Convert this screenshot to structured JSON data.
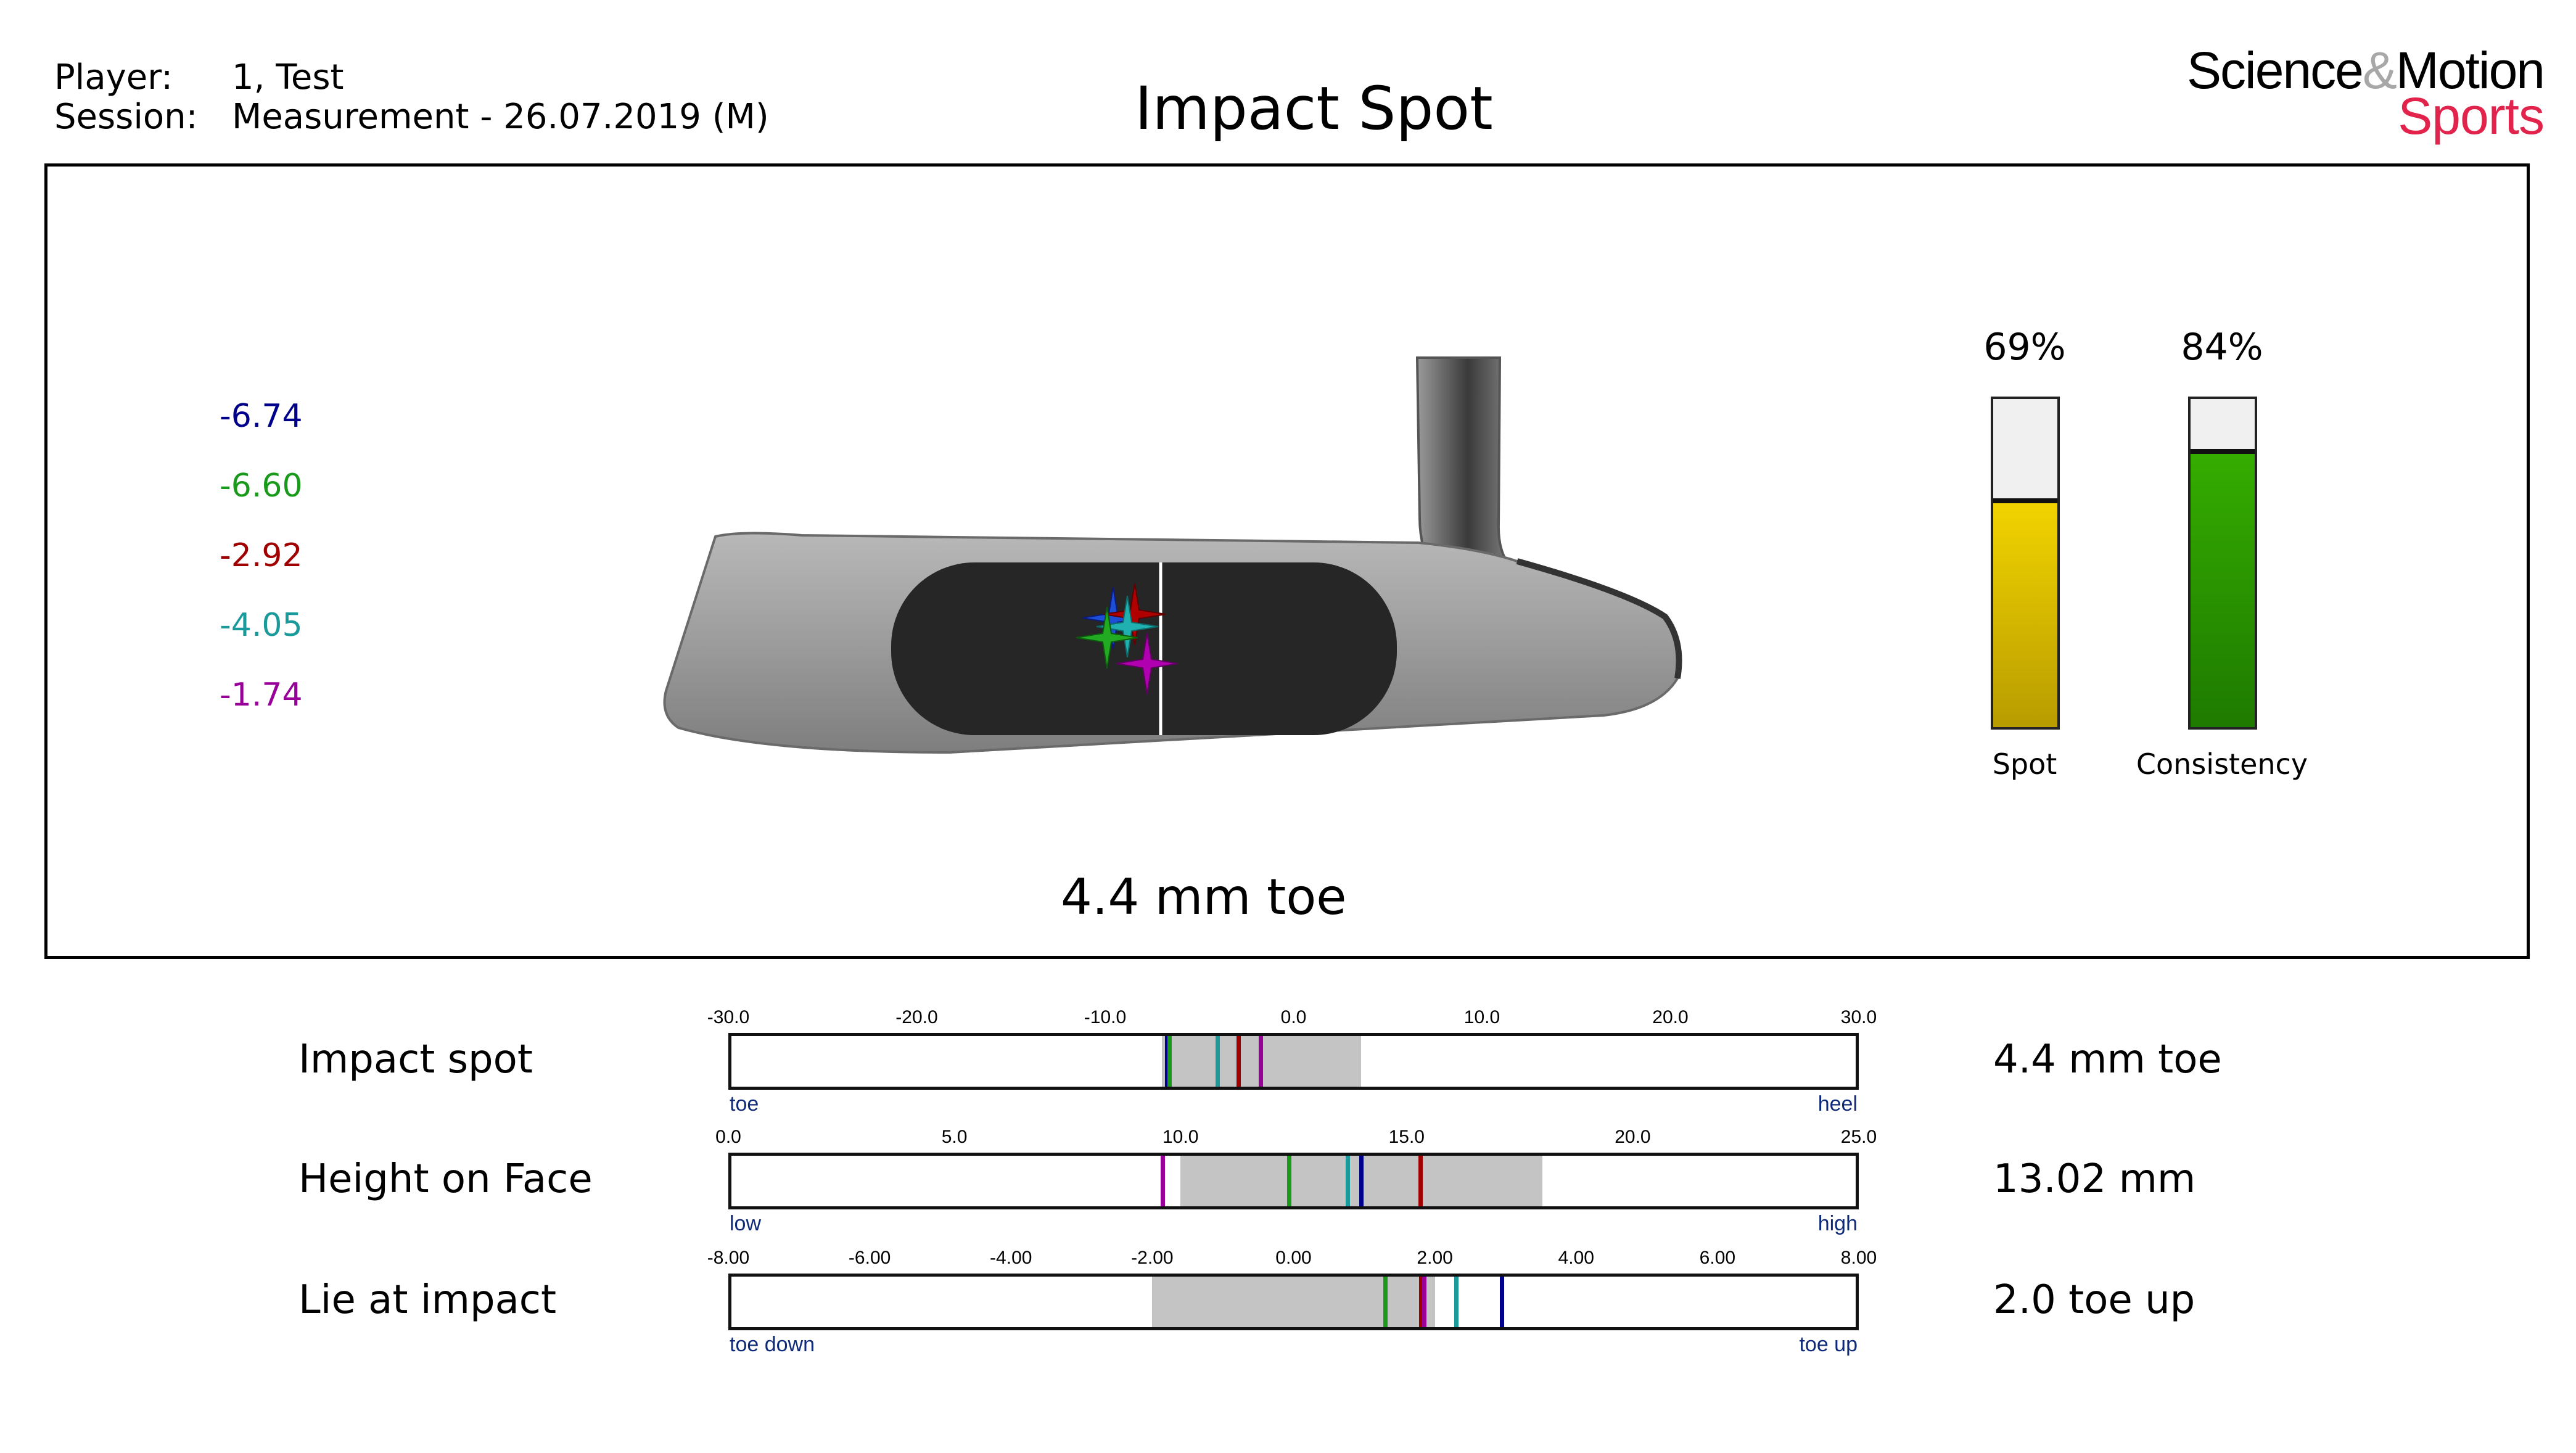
{
  "header": {
    "player_label": "Player:",
    "player_value": "1, Test",
    "session_label": "Session:",
    "session_value": "Measurement - 26.07.2019 (M)",
    "title": "Impact Spot"
  },
  "logo": {
    "science": "Science",
    "amp": "&",
    "motion": "Motion",
    "sports": "Sports"
  },
  "legend_values": [
    {
      "text": "-6.74",
      "color": "#00008b"
    },
    {
      "text": "-6.60",
      "color": "#1a9a1a"
    },
    {
      "text": "-2.92",
      "color": "#a00000"
    },
    {
      "text": "-4.05",
      "color": "#1a9a9a"
    },
    {
      "text": "-1.74",
      "color": "#990099"
    }
  ],
  "result_text": "4.4 mm toe",
  "meters": [
    {
      "pct_text": "69%",
      "label": "Spot",
      "level": 0.69,
      "color_top": "#f2d400",
      "color_bottom": "#b89c00"
    },
    {
      "pct_text": "84%",
      "label": "Consistency",
      "level": 0.84,
      "color_top": "#35ad00",
      "color_bottom": "#1e7a00"
    }
  ],
  "putter_markers_icon": "star-marker-icon",
  "chart_data": [
    {
      "type": "range-gauge",
      "label": "Impact spot",
      "value_text": "4.4 mm toe",
      "min": -30,
      "max": 30,
      "ticks": [
        "-30.0",
        "-20.0",
        "-10.0",
        "0.0",
        "10.0",
        "20.0",
        "30.0"
      ],
      "left_end_label": "toe",
      "right_end_label": "heel",
      "range": [
        -7.0,
        3.6
      ],
      "markers": [
        {
          "value": -6.74,
          "color": "#00008b"
        },
        {
          "value": -6.6,
          "color": "#1a9a1a"
        },
        {
          "value": -4.05,
          "color": "#1a9a9a"
        },
        {
          "value": -2.92,
          "color": "#a00000"
        },
        {
          "value": -1.74,
          "color": "#990099"
        }
      ]
    },
    {
      "type": "range-gauge",
      "label": "Height on Face",
      "value_text": "13.02 mm",
      "min": 0,
      "max": 25,
      "ticks": [
        "0.0",
        "5.0",
        "10.0",
        "15.0",
        "20.0",
        "25.0"
      ],
      "left_end_label": "low",
      "right_end_label": "high",
      "range": [
        10.0,
        18.0
      ],
      "markers": [
        {
          "value": 9.6,
          "color": "#990099"
        },
        {
          "value": 12.4,
          "color": "#1a9a1a"
        },
        {
          "value": 13.7,
          "color": "#1a9a9a"
        },
        {
          "value": 14.0,
          "color": "#00008b"
        },
        {
          "value": 15.3,
          "color": "#a00000"
        }
      ]
    },
    {
      "type": "range-gauge",
      "label": "Lie at impact",
      "value_text": "2.0 toe up",
      "min": -8,
      "max": 8,
      "ticks": [
        "-8.00",
        "-6.00",
        "-4.00",
        "-2.00",
        "0.00",
        "2.00",
        "4.00",
        "6.00",
        "8.00"
      ],
      "left_end_label": "toe down",
      "right_end_label": "toe up",
      "range": [
        -2.0,
        2.0
      ],
      "markers": [
        {
          "value": 1.3,
          "color": "#1a9a1a"
        },
        {
          "value": 1.8,
          "color": "#a00000"
        },
        {
          "value": 1.85,
          "color": "#990099"
        },
        {
          "value": 2.3,
          "color": "#1a9a9a"
        },
        {
          "value": 2.95,
          "color": "#00008b"
        }
      ]
    }
  ]
}
